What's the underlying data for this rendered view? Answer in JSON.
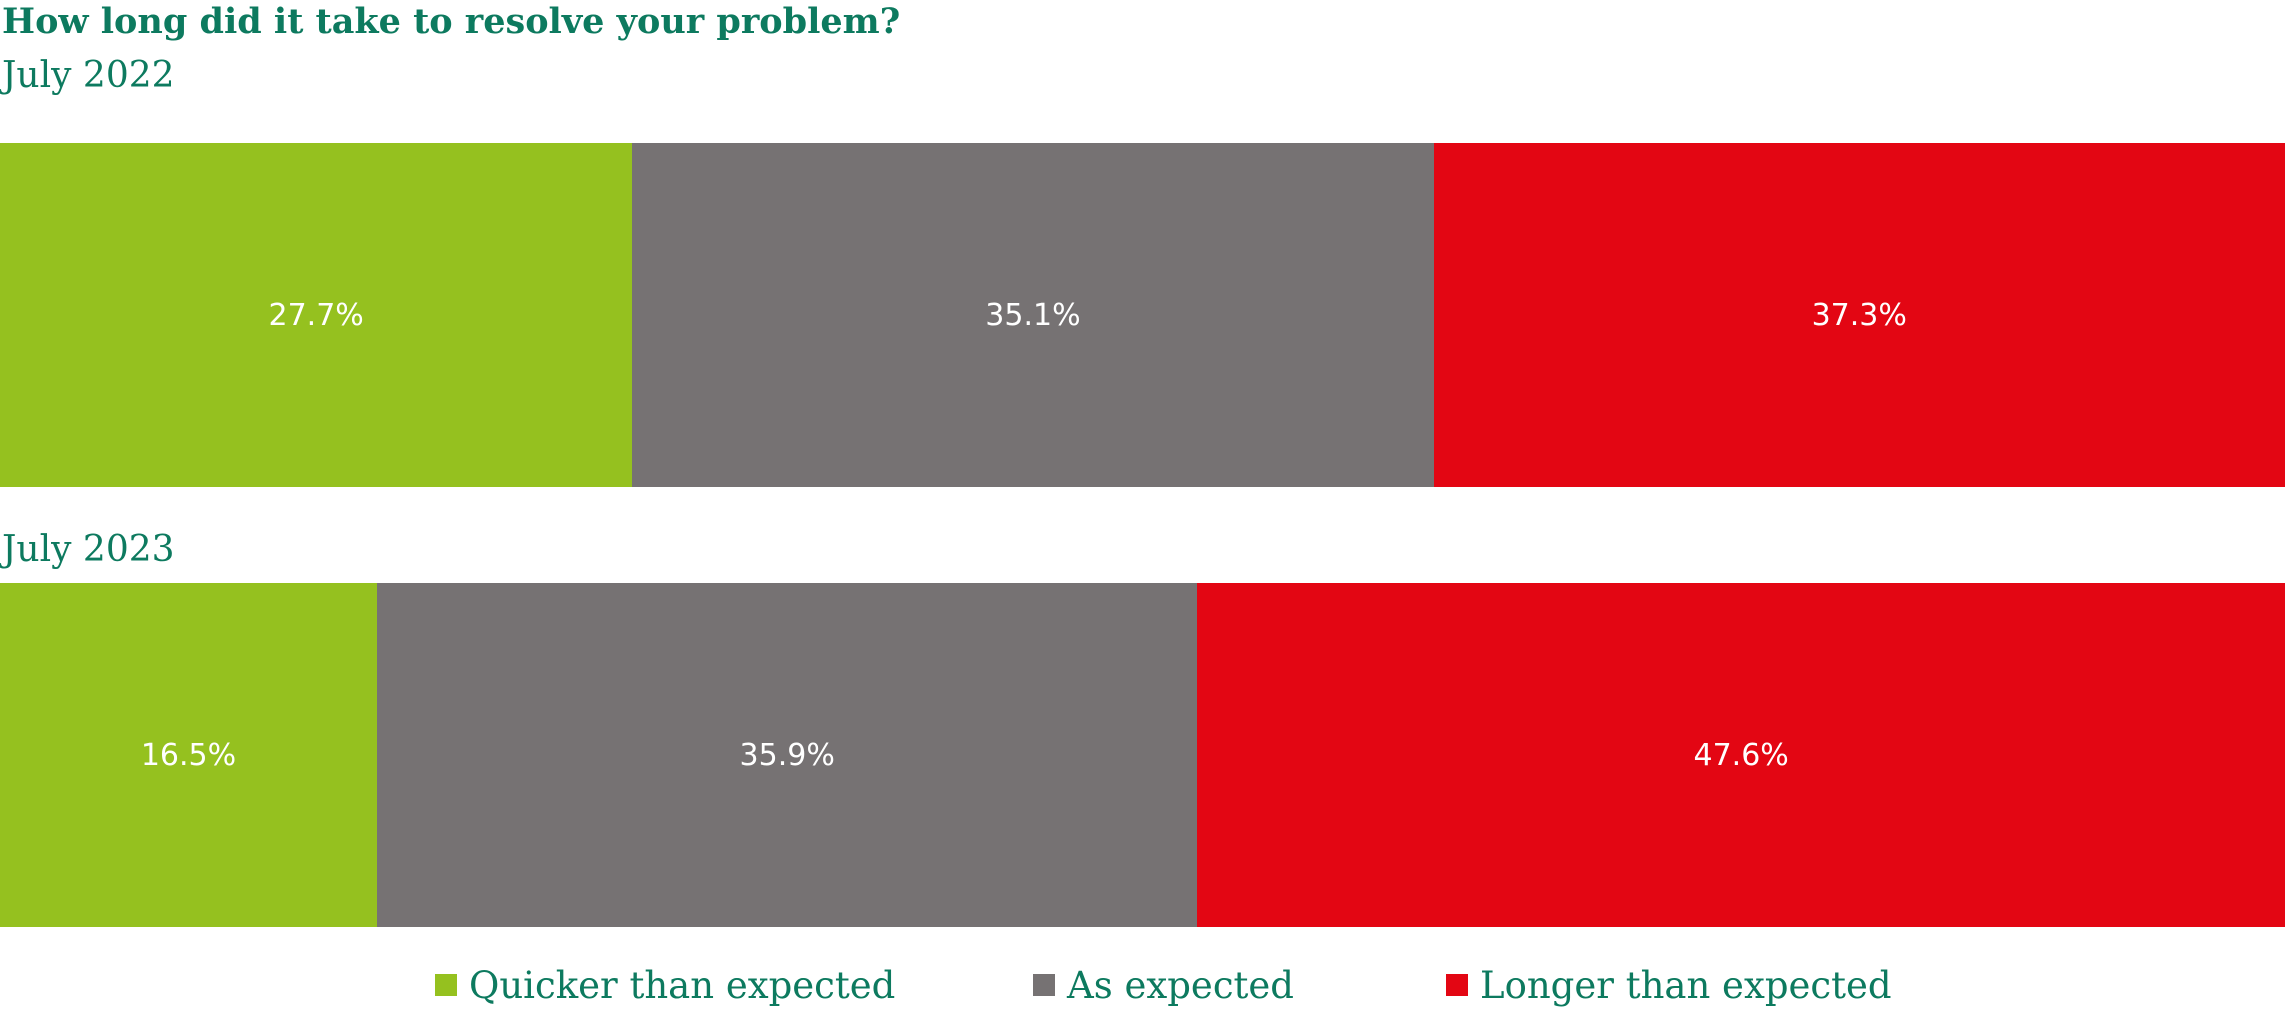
{
  "colors": {
    "title_text": "#0d7a5f",
    "quicker": "#95c11f",
    "as_expected": "#767273",
    "longer": "#e30613",
    "value_text": "#ffffff"
  },
  "chart_data": {
    "type": "bar",
    "orientation": "horizontal",
    "stacked": true,
    "title": "How long did it take to resolve your problem?",
    "categories": [
      "July 2022",
      "July 2023"
    ],
    "series": [
      {
        "name": "Quicker than expected",
        "values": [
          27.7,
          16.5
        ],
        "labels": [
          "27.7%",
          "16.5%"
        ],
        "color": "#95c11f"
      },
      {
        "name": "As expected",
        "values": [
          35.1,
          35.9
        ],
        "labels": [
          "35.1%",
          "35.9%"
        ],
        "color": "#767273"
      },
      {
        "name": "Longer than expected",
        "values": [
          37.3,
          47.6
        ],
        "labels": [
          "37.3%",
          "47.6%"
        ],
        "color": "#e30613"
      }
    ],
    "xlim": [
      0,
      100
    ],
    "grid": false,
    "legend_position": "bottom"
  }
}
